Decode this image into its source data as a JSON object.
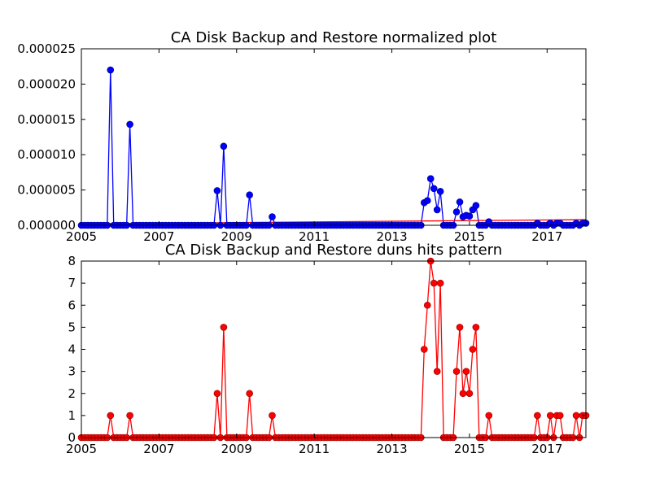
{
  "colors": {
    "series1": "#0000ff",
    "series1_edge": "#000080",
    "series2": "#ff0000",
    "series2_edge": "#800000",
    "trend": "#ff0000"
  },
  "chart_data": [
    {
      "type": "line",
      "title": "CA Disk Backup and Restore normalized plot",
      "xlim": [
        2005.0,
        2018.0
      ],
      "ylim": [
        0,
        2.5e-05
      ],
      "x_ticks": [
        2005,
        2007,
        2009,
        2011,
        2013,
        2015,
        2017
      ],
      "y_ticks": [
        0,
        5e-06,
        1e-05,
        1.5e-05,
        2e-05,
        2.5e-05
      ],
      "y_tick_labels": [
        "0.000000",
        "0.000005",
        "0.000010",
        "0.000015",
        "0.000020",
        "0.000025"
      ],
      "marker": "circle",
      "points": [
        [
          2005.75,
          2.2e-05
        ],
        [
          2006.25,
          1.43e-05
        ],
        [
          2008.5,
          4.9e-06
        ],
        [
          2008.67,
          1.12e-05
        ],
        [
          2009.33,
          4.3e-06
        ],
        [
          2009.92,
          1.2e-06
        ],
        [
          2013.83,
          3.2e-06
        ],
        [
          2013.92,
          3.5e-06
        ],
        [
          2014.0,
          6.6e-06
        ],
        [
          2014.08,
          5.2e-06
        ],
        [
          2014.17,
          2.2e-06
        ],
        [
          2014.25,
          4.8e-06
        ],
        [
          2014.67,
          1.9e-06
        ],
        [
          2014.75,
          3.3e-06
        ],
        [
          2014.83,
          1.2e-06
        ],
        [
          2014.92,
          1.4e-06
        ],
        [
          2015.0,
          1.3e-06
        ],
        [
          2015.08,
          2.2e-06
        ],
        [
          2015.17,
          2.8e-06
        ],
        [
          2015.5,
          5e-07
        ],
        [
          2016.75,
          3e-07
        ],
        [
          2017.08,
          3e-07
        ],
        [
          2017.25,
          3e-07
        ],
        [
          2017.33,
          3e-07
        ],
        [
          2017.75,
          3e-07
        ],
        [
          2017.92,
          3e-07
        ],
        [
          2018.0,
          3e-07
        ]
      ],
      "trend": {
        "x": [
          2005.0,
          2018.0
        ],
        "y": [
          2e-07,
          8e-07
        ]
      }
    },
    {
      "type": "line",
      "title": "CA Disk Backup and Restore duns hits pattern",
      "xlim": [
        2005.0,
        2018.0
      ],
      "ylim": [
        0,
        8
      ],
      "x_ticks": [
        2005,
        2007,
        2009,
        2011,
        2013,
        2015,
        2017
      ],
      "y_ticks": [
        0,
        1,
        2,
        3,
        4,
        5,
        6,
        7,
        8
      ],
      "y_tick_labels": [
        "0",
        "1",
        "2",
        "3",
        "4",
        "5",
        "6",
        "7",
        "8"
      ],
      "marker": "circle",
      "points": [
        [
          2005.75,
          1
        ],
        [
          2006.25,
          1
        ],
        [
          2008.5,
          2
        ],
        [
          2008.67,
          5
        ],
        [
          2009.33,
          2
        ],
        [
          2009.92,
          1
        ],
        [
          2013.83,
          4
        ],
        [
          2013.92,
          6
        ],
        [
          2014.0,
          8
        ],
        [
          2014.08,
          7
        ],
        [
          2014.17,
          3
        ],
        [
          2014.25,
          7
        ],
        [
          2014.67,
          3
        ],
        [
          2014.75,
          5
        ],
        [
          2014.83,
          2
        ],
        [
          2014.92,
          3
        ],
        [
          2015.0,
          2
        ],
        [
          2015.08,
          4
        ],
        [
          2015.17,
          5
        ],
        [
          2015.5,
          1
        ],
        [
          2016.75,
          1
        ],
        [
          2017.08,
          1
        ],
        [
          2017.25,
          1
        ],
        [
          2017.33,
          1
        ],
        [
          2017.75,
          1
        ],
        [
          2017.92,
          1
        ],
        [
          2018.0,
          1
        ]
      ]
    }
  ]
}
